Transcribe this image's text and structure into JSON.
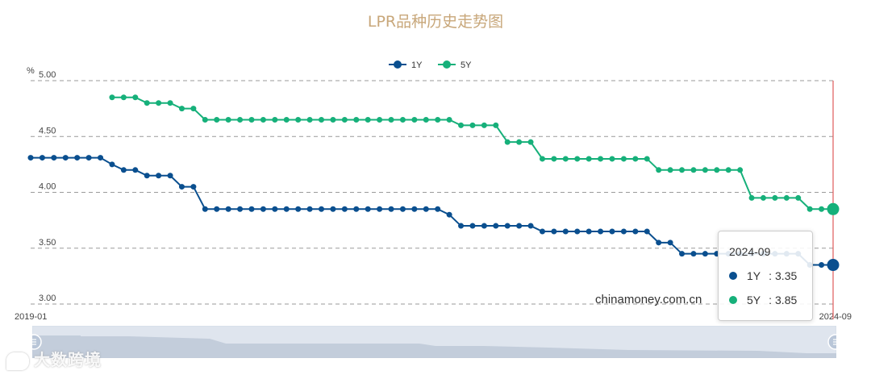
{
  "chart_data": {
    "type": "line",
    "title": "LPR品种历史走势图",
    "ylabel": "%",
    "ylim": [
      3.0,
      5.0
    ],
    "y_ticks": [
      "5.00",
      "4.50",
      "4.00",
      "3.50",
      "3.00"
    ],
    "x_tick_labels": [
      "2019-01",
      "2024-09"
    ],
    "legend_position": "top-center",
    "grid": true,
    "series": [
      {
        "name": "1Y",
        "color": "#0a4f8f",
        "values": [
          4.31,
          4.31,
          4.31,
          4.31,
          4.31,
          4.31,
          4.31,
          4.25,
          4.2,
          4.2,
          4.15,
          4.15,
          4.15,
          4.05,
          4.05,
          3.85,
          3.85,
          3.85,
          3.85,
          3.85,
          3.85,
          3.85,
          3.85,
          3.85,
          3.85,
          3.85,
          3.85,
          3.85,
          3.85,
          3.85,
          3.85,
          3.85,
          3.85,
          3.85,
          3.85,
          3.85,
          3.8,
          3.7,
          3.7,
          3.7,
          3.7,
          3.7,
          3.7,
          3.7,
          3.65,
          3.65,
          3.65,
          3.65,
          3.65,
          3.65,
          3.65,
          3.65,
          3.65,
          3.65,
          3.55,
          3.55,
          3.45,
          3.45,
          3.45,
          3.45,
          3.45,
          3.45,
          3.45,
          3.45,
          3.45,
          3.45,
          3.45,
          3.35,
          3.35,
          3.35
        ]
      },
      {
        "name": "5Y",
        "color": "#16b07a",
        "values": [
          null,
          null,
          null,
          null,
          null,
          null,
          null,
          4.85,
          4.85,
          4.85,
          4.8,
          4.8,
          4.8,
          4.75,
          4.75,
          4.65,
          4.65,
          4.65,
          4.65,
          4.65,
          4.65,
          4.65,
          4.65,
          4.65,
          4.65,
          4.65,
          4.65,
          4.65,
          4.65,
          4.65,
          4.65,
          4.65,
          4.65,
          4.65,
          4.65,
          4.65,
          4.65,
          4.6,
          4.6,
          4.6,
          4.6,
          4.45,
          4.45,
          4.45,
          4.3,
          4.3,
          4.3,
          4.3,
          4.3,
          4.3,
          4.3,
          4.3,
          4.3,
          4.3,
          4.2,
          4.2,
          4.2,
          4.2,
          4.2,
          4.2,
          4.2,
          4.2,
          3.95,
          3.95,
          3.95,
          3.95,
          3.95,
          3.85,
          3.85,
          3.85
        ]
      }
    ],
    "highlight": {
      "period": "2024-09",
      "1Y": 3.35,
      "5Y": 3.85
    }
  },
  "tooltip": {
    "title": "2024-09",
    "rows": [
      {
        "series": "1Y",
        "sep": ":",
        "value": "3.35"
      },
      {
        "series": "5Y",
        "sep": ":",
        "value": "3.85"
      }
    ]
  },
  "source_text": "chinamoney.com.cn",
  "watermark": "大数跨境"
}
